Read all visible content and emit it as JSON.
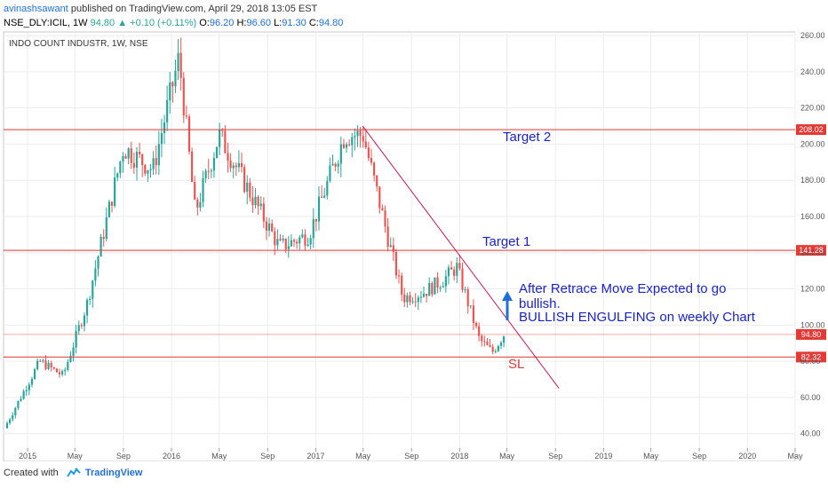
{
  "header": {
    "author": "avinashsawant",
    "published": "published on TradingView.com, April 29, 2018 13:05 EST",
    "symbol": "NSE_DLY:ICIL, 1W",
    "last": "94.80",
    "change": "+0.10 (+0.11%)",
    "open_label": "O:",
    "open": "96.20",
    "high_label": "H:",
    "high": "96.60",
    "low_label": "L:",
    "low": "91.30",
    "close_label": "C:",
    "close": "94.80"
  },
  "footer": {
    "created_with": "Created with",
    "brand": "TradingView",
    "logo_icon": "tradingview-logo-icon"
  },
  "colors": {
    "up": "#26a69a",
    "down": "#ef5350",
    "level": "#e53935",
    "trend": "#c2185b",
    "note": "#1a23c9",
    "arrow": "#1e6fd9"
  },
  "chart_data": {
    "type": "candlestick",
    "title": "INDO COUNT INDUSTR, 1W, NSE",
    "xlabel": "",
    "ylabel": "",
    "y_axis": {
      "ticks": [
        40,
        60,
        80,
        100,
        120,
        140,
        160,
        180,
        200,
        220,
        240,
        260
      ],
      "range": [
        32,
        262
      ],
      "side": "right"
    },
    "x_axis": {
      "ticks": [
        "2015",
        "May",
        "Sep",
        "2016",
        "May",
        "Sep",
        "2017",
        "May",
        "Sep",
        "2018",
        "May",
        "Sep",
        "2019",
        "May",
        "Sep",
        "2020",
        "May"
      ],
      "tick_dates": [
        "2015-01",
        "2015-05",
        "2015-09",
        "2016-01",
        "2016-05",
        "2016-09",
        "2017-01",
        "2017-05",
        "2017-09",
        "2018-01",
        "2018-05",
        "2018-09",
        "2019-01",
        "2019-05",
        "2019-09",
        "2020-01",
        "2020-05"
      ],
      "range": [
        "2014-11",
        "2020-05"
      ]
    },
    "grid": true,
    "levels": [
      {
        "label": "208.02",
        "value": 208.02
      },
      {
        "label": "141.28",
        "value": 141.28
      },
      {
        "label": "94.80",
        "value": 94.8
      },
      {
        "label": "82.32",
        "value": 82.32
      }
    ],
    "annotations": [
      "Target 2",
      "Target 1",
      "After Retrace Move Expected to go",
      "bullish.",
      "BULLISH ENGULFING on weekly Chart",
      "SL"
    ],
    "trendline": [
      {
        "date": "2017-04-30",
        "value": 210
      },
      {
        "date": "2018-09-10",
        "value": 65
      }
    ],
    "pivots": [
      {
        "date": "2014-11-03",
        "value": 43
      },
      {
        "date": "2015-02-01",
        "value": 80
      },
      {
        "date": "2015-04-01",
        "value": 72
      },
      {
        "date": "2015-06-01",
        "value": 112
      },
      {
        "date": "2015-09-01",
        "value": 198
      },
      {
        "date": "2015-11-15",
        "value": 186
      },
      {
        "date": "2016-01-20",
        "value": 248
      },
      {
        "date": "2016-03-01",
        "value": 162
      },
      {
        "date": "2016-05-01",
        "value": 205
      },
      {
        "date": "2016-07-01",
        "value": 180
      },
      {
        "date": "2016-10-01",
        "value": 143
      },
      {
        "date": "2016-12-15",
        "value": 150
      },
      {
        "date": "2017-03-15",
        "value": 205
      },
      {
        "date": "2017-05-01",
        "value": 205
      },
      {
        "date": "2017-07-01",
        "value": 150
      },
      {
        "date": "2017-08-10",
        "value": 115
      },
      {
        "date": "2017-10-01",
        "value": 118
      },
      {
        "date": "2017-11-20",
        "value": 125
      },
      {
        "date": "2017-12-25",
        "value": 132
      },
      {
        "date": "2018-02-20",
        "value": 92
      },
      {
        "date": "2018-03-25",
        "value": 85
      },
      {
        "date": "2018-04-23",
        "value": 94.8
      }
    ]
  }
}
